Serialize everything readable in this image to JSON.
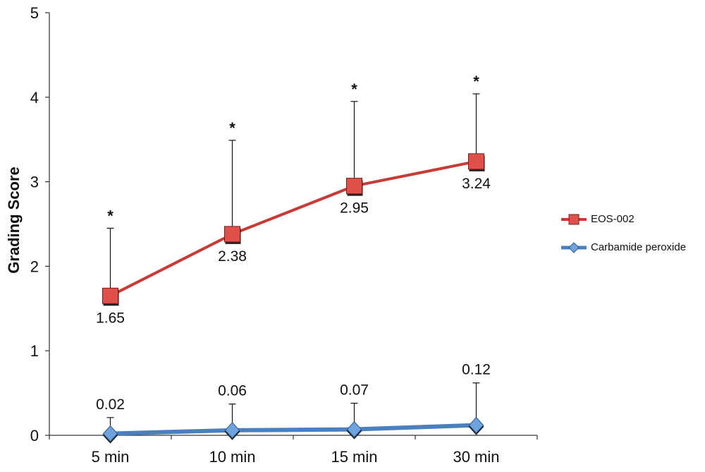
{
  "chart_data": {
    "type": "line",
    "title": "",
    "xlabel": "",
    "ylabel": "Grading Score",
    "ylim": [
      0,
      5
    ],
    "yticks": [
      "0",
      "1",
      "2",
      "3",
      "4",
      "5"
    ],
    "categories": [
      "5 min",
      "10 min",
      "15 min",
      "30 min"
    ],
    "grid": false,
    "legend_position": "right",
    "significance_marker": "*",
    "series": [
      {
        "name": "EOS-002",
        "color": "#c93a36",
        "marker": "square",
        "values": [
          1.65,
          2.38,
          2.95,
          3.24
        ],
        "labels": [
          "1.65",
          "2.38",
          "2.95",
          "3.24"
        ],
        "error_upper": [
          2.45,
          3.49,
          3.95,
          4.04
        ],
        "significant": [
          true,
          true,
          true,
          true
        ]
      },
      {
        "name": "Carbamide peroxide",
        "color": "#4a7fc0",
        "marker": "diamond",
        "values": [
          0.02,
          0.06,
          0.07,
          0.12
        ],
        "labels": [
          "0.02",
          "0.06",
          "0.07",
          "0.12"
        ],
        "error_upper": [
          0.21,
          0.37,
          0.38,
          0.62
        ],
        "significant": [
          false,
          false,
          false,
          false
        ]
      }
    ]
  }
}
